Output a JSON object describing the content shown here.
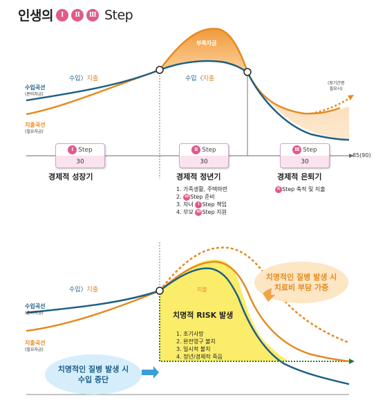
{
  "title": {
    "prefix": "인생의",
    "romans": [
      "Ⅰ",
      "Ⅱ",
      "Ⅲ"
    ],
    "step": "Step"
  },
  "top": {
    "deficit_label": "부족자금",
    "income_gt_expense_left": {
      "income": "수입",
      "gt": "〉",
      "expense": "지출"
    },
    "income_lt_expense_mid": {
      "income": "수입",
      "lt": "〈",
      "expense": "지출"
    },
    "income_curve_label": "수입곡선",
    "income_curve_sub": "(준비자금)",
    "expense_curve_label": "지출곡선",
    "expense_curve_sub": "(필요자금)",
    "longevity_note_1": "(장기간병",
    "longevity_note_2": "필요시)",
    "axis_end": "85(90)",
    "phases": [
      {
        "roman": "Ⅰ",
        "step": "Step",
        "age": "30",
        "name": "경제적 성장기"
      },
      {
        "roman": "Ⅱ",
        "step": "Step",
        "age": "30",
        "name": "경제적 정년기"
      },
      {
        "roman": "Ⅲ",
        "step": "Step",
        "age": "30",
        "name": "경제적 은퇴기"
      }
    ],
    "phase2_items": [
      "1. 가족생활, 주택마련",
      "2. ",
      "Step 준비",
      "3. 자녀 ",
      "Step 책임",
      "4. 부모 ",
      "Step 지원"
    ],
    "phase3_note": "Step 축적 및 지출"
  },
  "bottom": {
    "income_gt_expense": {
      "income": "수입",
      "gt": "〉",
      "expense": "지출"
    },
    "expense_label": "지출",
    "income_curve_label": "수입곡선",
    "income_curve_sub": "(준비자금)",
    "expense_curve_label": "지출곡선",
    "expense_curve_sub": "(필요자금)",
    "risk_title": "치명적 RISK 발생",
    "risk_items": [
      "1. 조기사망",
      "2. 완전영구 불치",
      "3. 일시적 불치",
      "4. 정년/경제적 죽음"
    ],
    "bubble_right": [
      "치명적인 질병 발생 시",
      "치료비 부담 가중"
    ],
    "bubble_left": [
      "치명적인 질병 발생 시",
      "수입 중단"
    ]
  },
  "colors": {
    "income": "#1d5f86",
    "expense": "#e58a1f",
    "risk_fill": "#fbec6a",
    "deficit": "#f6b36a"
  }
}
